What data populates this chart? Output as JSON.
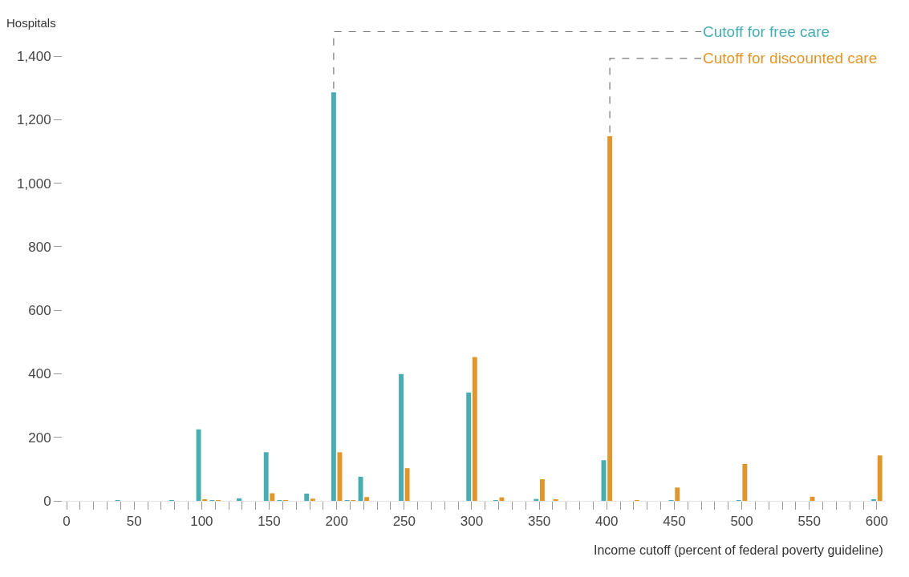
{
  "chart_data": {
    "type": "bar",
    "xlabel": "Income cutoff (percent of federal poverty guideline)",
    "ylabel": "Hospitals",
    "x": [
      40,
      80,
      100,
      110,
      130,
      150,
      160,
      180,
      200,
      210,
      220,
      250,
      300,
      320,
      350,
      360,
      400,
      420,
      450,
      500,
      550,
      600
    ],
    "series": [
      {
        "name": "Cutoff for free care",
        "color": "#48adb0",
        "values": [
          1,
          1,
          225,
          2,
          8,
          153,
          1,
          23,
          1286,
          1,
          76,
          399,
          341,
          1,
          6,
          0,
          128,
          0,
          1,
          1,
          0,
          4
        ]
      },
      {
        "name": "Cutoff for discounted care",
        "color": "#e0962a",
        "values": [
          0,
          0,
          5,
          1,
          0,
          24,
          1,
          7,
          153,
          2,
          12,
          103,
          453,
          11,
          68,
          3,
          1148,
          2,
          42,
          116,
          13,
          143
        ]
      }
    ],
    "xlim": [
      -3,
      606
    ],
    "ylim": [
      0,
      1400
    ],
    "xticks": [
      0,
      {
        "value": 10,
        "label": null
      },
      {
        "value": 20,
        "label": null
      },
      {
        "value": 30,
        "label": null
      },
      {
        "value": 40,
        "label": null
      },
      50,
      {
        "value": 60,
        "label": null
      },
      {
        "value": 70,
        "label": null
      },
      {
        "value": 80,
        "label": null
      },
      {
        "value": 90,
        "label": null
      },
      100,
      {
        "value": 110,
        "label": null
      },
      {
        "value": 120,
        "label": null
      },
      {
        "value": 130,
        "label": null
      },
      {
        "value": 140,
        "label": null
      },
      150,
      {
        "value": 160,
        "label": null
      },
      {
        "value": 170,
        "label": null
      },
      {
        "value": 180,
        "label": null
      },
      {
        "value": 190,
        "label": null
      },
      200,
      {
        "value": 210,
        "label": null
      },
      {
        "value": 220,
        "label": null
      },
      {
        "value": 230,
        "label": null
      },
      {
        "value": 240,
        "label": null
      },
      250,
      {
        "value": 260,
        "label": null
      },
      {
        "value": 270,
        "label": null
      },
      {
        "value": 280,
        "label": null
      },
      {
        "value": 290,
        "label": null
      },
      300,
      {
        "value": 310,
        "label": null
      },
      {
        "value": 320,
        "label": null
      },
      {
        "value": 330,
        "label": null
      },
      {
        "value": 340,
        "label": null
      },
      350,
      {
        "value": 360,
        "label": null
      },
      {
        "value": 370,
        "label": null
      },
      {
        "value": 380,
        "label": null
      },
      {
        "value": 390,
        "label": null
      },
      400,
      {
        "value": 410,
        "label": null
      },
      {
        "value": 420,
        "label": null
      },
      {
        "value": 430,
        "label": null
      },
      {
        "value": 440,
        "label": null
      },
      450,
      {
        "value": 460,
        "label": null
      },
      {
        "value": 470,
        "label": null
      },
      {
        "value": 480,
        "label": null
      },
      {
        "value": 490,
        "label": null
      },
      500,
      {
        "value": 510,
        "label": null
      },
      {
        "value": 520,
        "label": null
      },
      {
        "value": 530,
        "label": null
      },
      {
        "value": 540,
        "label": null
      },
      550,
      {
        "value": 560,
        "label": null
      },
      {
        "value": 570,
        "label": null
      },
      {
        "value": 580,
        "label": null
      },
      {
        "value": 590,
        "label": null
      },
      600
    ],
    "yticks": [
      0,
      200,
      400,
      600,
      800,
      {
        "value": 1000,
        "label": "1,000"
      },
      {
        "value": 1200,
        "label": "1,200"
      },
      {
        "value": 1400,
        "label": "1,400"
      }
    ],
    "grid": false,
    "legend": false
  }
}
